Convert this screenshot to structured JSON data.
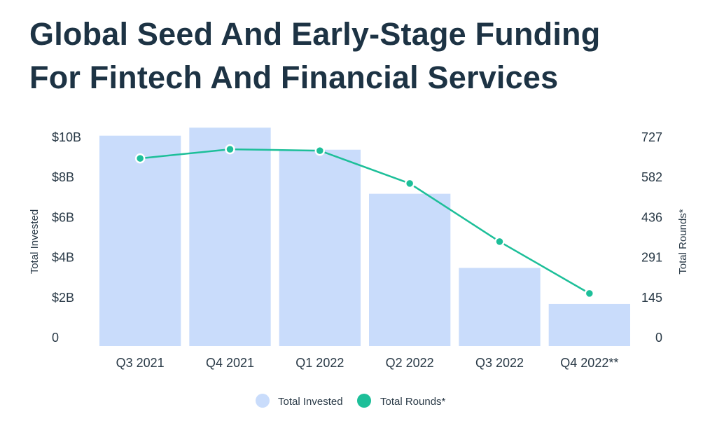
{
  "chart_data": {
    "type": "bar",
    "title": "Global Seed And Early-Stage Funding For Fintech And Financial Services",
    "title_lines": [
      "Global Seed And Early-Stage Funding",
      "For Fintech And Financial Services"
    ],
    "categories": [
      "Q3 2021",
      "Q4 2021",
      "Q1 2022",
      "Q2 2022",
      "Q3 2022",
      "Q4 2022**"
    ],
    "series": [
      {
        "name": "Total Invested",
        "type": "bar",
        "axis": "left",
        "unit": "$B",
        "color": "#c9dcfb",
        "values": [
          10.5,
          10.9,
          9.8,
          7.6,
          3.9,
          2.1
        ]
      },
      {
        "name": "Total Rounds*",
        "type": "line",
        "axis": "right",
        "color": "#1dbf99",
        "values": [
          681,
          714,
          709,
          590,
          379,
          191
        ]
      }
    ],
    "ylabel": "Total Invested",
    "y2label": "Total Rounds*",
    "ylim": [
      0,
      10
    ],
    "y2lim": [
      0,
      727
    ],
    "yticks": [
      {
        "v": 0,
        "label": "0"
      },
      {
        "v": 2,
        "label": "$2B"
      },
      {
        "v": 4,
        "label": "$4B"
      },
      {
        "v": 6,
        "label": "$6B"
      },
      {
        "v": 8,
        "label": "$8B"
      },
      {
        "v": 10,
        "label": "$10B"
      }
    ],
    "y2ticks": [
      {
        "v": 0,
        "label": "0"
      },
      {
        "v": 145,
        "label": "145"
      },
      {
        "v": 291,
        "label": "291"
      },
      {
        "v": 436,
        "label": "436"
      },
      {
        "v": 582,
        "label": "582"
      },
      {
        "v": 727,
        "label": "727"
      }
    ],
    "grid": false,
    "legend": {
      "placement": "bottom",
      "entries": [
        "Total Invested",
        "Total Rounds*"
      ]
    }
  }
}
